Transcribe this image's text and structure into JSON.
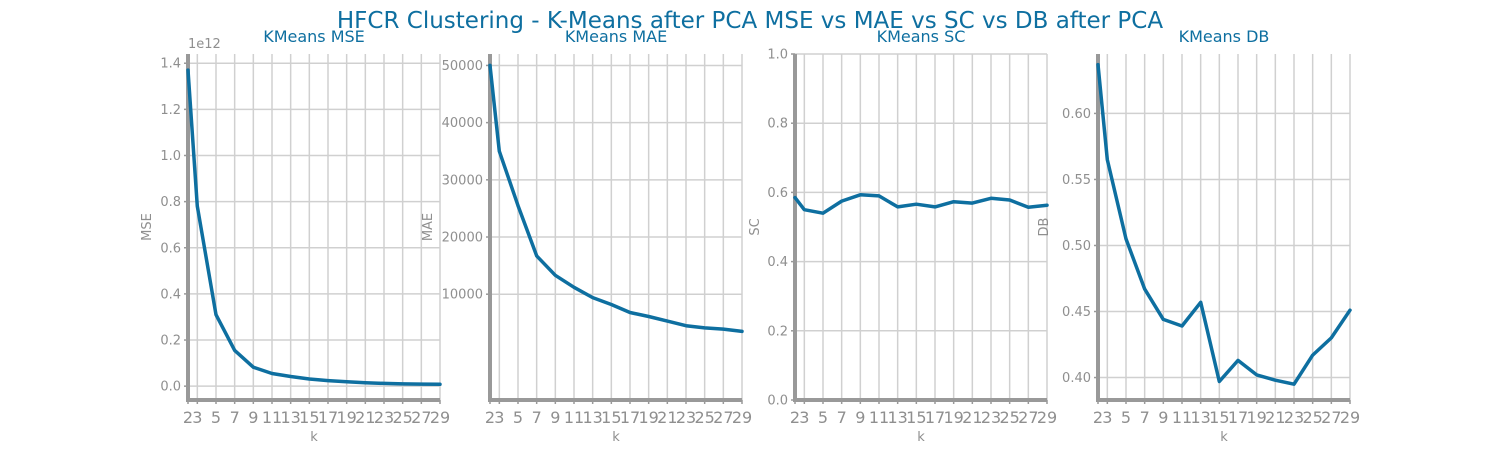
{
  "suptitle": "HFCR Clustering - K-Means after PCA MSE vs MAE vs SC vs DB after PCA",
  "chart_data": [
    {
      "type": "line",
      "title": "KMeans MSE",
      "xlabel": "k",
      "ylabel": "MSE",
      "offset_text": "1e12",
      "x": [
        2,
        3,
        5,
        7,
        9,
        11,
        13,
        15,
        17,
        19,
        21,
        23,
        25,
        27,
        29
      ],
      "values": [
        1.37,
        0.78,
        0.31,
        0.155,
        0.082,
        0.055,
        0.042,
        0.031,
        0.024,
        0.019,
        0.015,
        0.012,
        0.01,
        0.009,
        0.008
      ],
      "ylim": [
        -0.06,
        1.44
      ],
      "yticks": [
        0.0,
        0.2,
        0.4,
        0.6,
        0.8,
        1.0,
        1.2,
        1.4
      ],
      "ytick_labels": [
        "0.0",
        "0.2",
        "0.4",
        "0.6",
        "0.8",
        "1.0",
        "1.2",
        "1.4"
      ],
      "xticks": [
        2,
        3,
        5,
        7,
        9,
        11,
        13,
        15,
        17,
        19,
        21,
        23,
        25,
        27,
        29
      ],
      "xtick_labels": [
        "2",
        "3",
        "5",
        "7",
        "9",
        "11",
        "13",
        "15",
        "17",
        "19",
        "21",
        "23",
        "25",
        "27",
        "29"
      ],
      "grid": true,
      "color": "#0e6fa0"
    },
    {
      "type": "line",
      "title": "KMeans MAE",
      "xlabel": "k",
      "ylabel": "MAE",
      "x": [
        2,
        3,
        5,
        7,
        9,
        11,
        13,
        15,
        17,
        19,
        21,
        23,
        25,
        27,
        29
      ],
      "values": [
        50000,
        35000,
        25500,
        16700,
        13300,
        11200,
        9400,
        8200,
        6800,
        6100,
        5300,
        4500,
        4100,
        3900,
        3500
      ],
      "ylim": [
        -8500,
        52000
      ],
      "yticks": [
        10000,
        20000,
        30000,
        40000,
        50000
      ],
      "ytick_labels": [
        "10000",
        "20000",
        "30000",
        "40000",
        "50000"
      ],
      "xticks": [
        2,
        3,
        5,
        7,
        9,
        11,
        13,
        15,
        17,
        19,
        21,
        23,
        25,
        27,
        29
      ],
      "xtick_labels": [
        "2",
        "3",
        "5",
        "7",
        "9",
        "11",
        "13",
        "15",
        "17",
        "19",
        "21",
        "23",
        "25",
        "27",
        "29"
      ],
      "grid": true,
      "color": "#0e6fa0"
    },
    {
      "type": "line",
      "title": "KMeans SC",
      "xlabel": "k",
      "ylabel": "SC",
      "x": [
        2,
        3,
        5,
        7,
        9,
        11,
        13,
        15,
        17,
        19,
        21,
        23,
        25,
        27,
        29
      ],
      "values": [
        0.585,
        0.55,
        0.54,
        0.575,
        0.593,
        0.59,
        0.558,
        0.566,
        0.558,
        0.573,
        0.569,
        0.583,
        0.578,
        0.557,
        0.563
      ],
      "ylim": [
        0.0,
        1.0
      ],
      "yticks": [
        0.0,
        0.2,
        0.4,
        0.6,
        0.8,
        1.0
      ],
      "ytick_labels": [
        "0.0",
        "0.2",
        "0.4",
        "0.6",
        "0.8",
        "1.0"
      ],
      "xticks": [
        2,
        3,
        5,
        7,
        9,
        11,
        13,
        15,
        17,
        19,
        21,
        23,
        25,
        27,
        29
      ],
      "xtick_labels": [
        "2",
        "3",
        "5",
        "7",
        "9",
        "11",
        "13",
        "15",
        "17",
        "19",
        "21",
        "23",
        "25",
        "27",
        "29"
      ],
      "grid": true,
      "color": "#0e6fa0"
    },
    {
      "type": "line",
      "title": "KMeans DB",
      "xlabel": "k",
      "ylabel": "DB",
      "x": [
        2,
        3,
        5,
        7,
        9,
        11,
        13,
        15,
        17,
        19,
        21,
        23,
        25,
        27,
        29
      ],
      "values": [
        0.637,
        0.565,
        0.505,
        0.467,
        0.444,
        0.439,
        0.457,
        0.397,
        0.413,
        0.402,
        0.398,
        0.395,
        0.417,
        0.43,
        0.451
      ],
      "ylim": [
        0.383,
        0.645
      ],
      "yticks": [
        0.4,
        0.45,
        0.5,
        0.55,
        0.6
      ],
      "ytick_labels": [
        "0.40",
        "0.45",
        "0.50",
        "0.55",
        "0.60"
      ],
      "xticks": [
        2,
        3,
        5,
        7,
        9,
        11,
        13,
        15,
        17,
        19,
        21,
        23,
        25,
        27,
        29
      ],
      "xtick_labels": [
        "2",
        "3",
        "5",
        "7",
        "9",
        "11",
        "13",
        "15",
        "17",
        "19",
        "21",
        "23",
        "25",
        "27",
        "29"
      ],
      "grid": true,
      "color": "#0e6fa0"
    }
  ]
}
